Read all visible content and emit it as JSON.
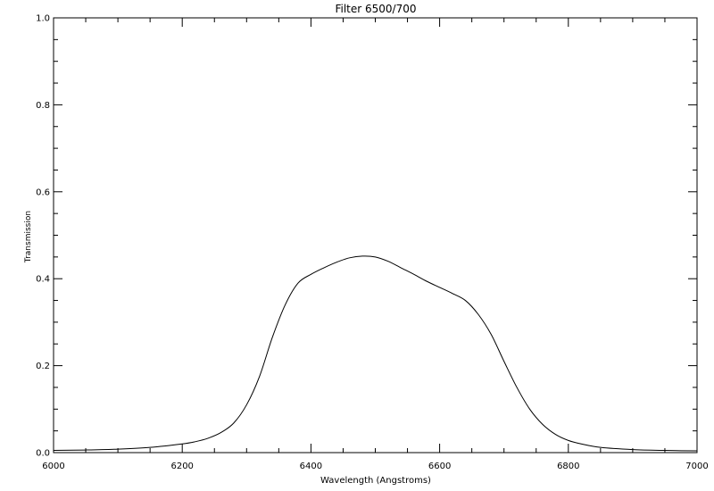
{
  "chart_data": {
    "type": "line",
    "title": "Filter 6500/700",
    "xlabel": "Wavelength (Angstroms)",
    "ylabel": "Transmission",
    "xlim": [
      6000,
      7000
    ],
    "ylim": [
      0.0,
      1.0
    ],
    "x_ticks": [
      {
        "value": 6000,
        "label": "6000"
      },
      {
        "value": 6200,
        "label": "6200"
      },
      {
        "value": 6400,
        "label": "6400"
      },
      {
        "value": 6600,
        "label": "6600"
      },
      {
        "value": 6800,
        "label": "6800"
      },
      {
        "value": 7000,
        "label": "7000"
      }
    ],
    "y_ticks": [
      {
        "value": 0.0,
        "label": "0.0"
      },
      {
        "value": 0.2,
        "label": "0.2"
      },
      {
        "value": 0.4,
        "label": "0.4"
      },
      {
        "value": 0.6,
        "label": "0.6"
      },
      {
        "value": 0.8,
        "label": "0.8"
      },
      {
        "value": 1.0,
        "label": "1.0"
      }
    ],
    "x_minor_step": 50,
    "y_minor_step": 0.05,
    "grid": false,
    "series": [
      {
        "color": "#000000",
        "x": [
          6000,
          6050,
          6100,
          6150,
          6200,
          6220,
          6240,
          6260,
          6280,
          6300,
          6320,
          6340,
          6360,
          6380,
          6400,
          6420,
          6440,
          6460,
          6480,
          6500,
          6520,
          6540,
          6560,
          6580,
          6600,
          6620,
          6640,
          6660,
          6680,
          6700,
          6720,
          6740,
          6760,
          6780,
          6800,
          6820,
          6850,
          6900,
          6950,
          7000
        ],
        "y": [
          0.005,
          0.006,
          0.008,
          0.012,
          0.02,
          0.025,
          0.033,
          0.046,
          0.068,
          0.11,
          0.175,
          0.265,
          0.34,
          0.39,
          0.41,
          0.425,
          0.438,
          0.448,
          0.452,
          0.45,
          0.44,
          0.425,
          0.41,
          0.394,
          0.38,
          0.366,
          0.35,
          0.318,
          0.272,
          0.21,
          0.15,
          0.1,
          0.065,
          0.042,
          0.028,
          0.02,
          0.012,
          0.007,
          0.005,
          0.004
        ]
      }
    ]
  }
}
